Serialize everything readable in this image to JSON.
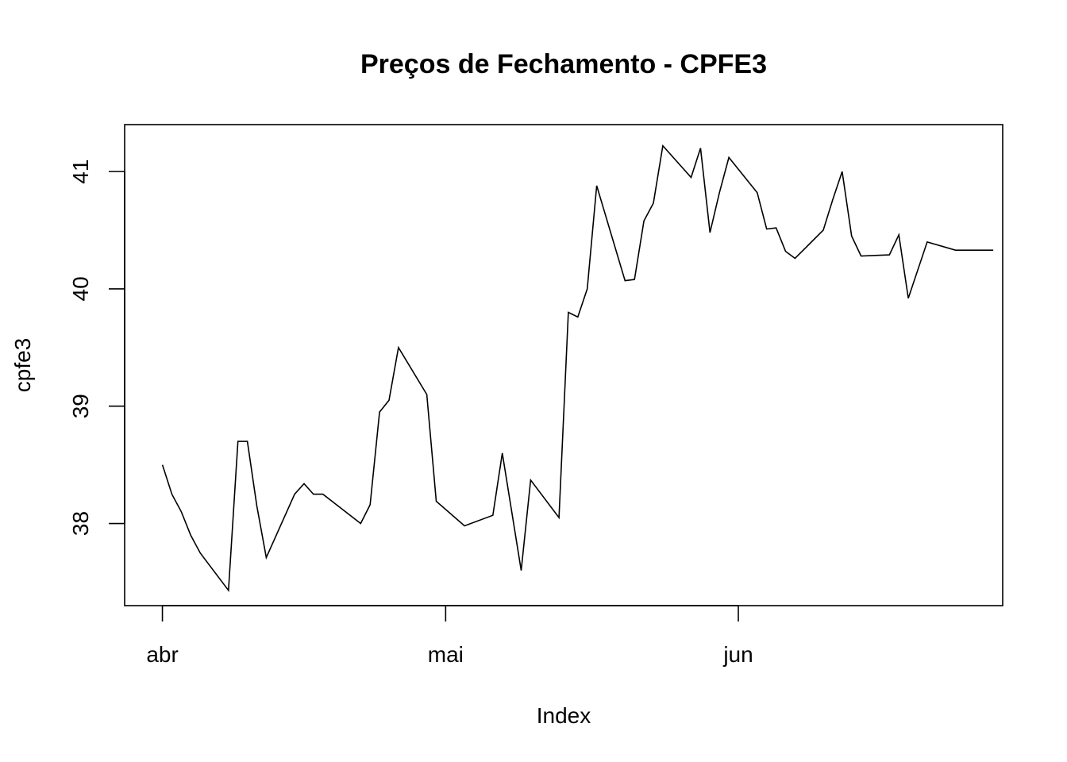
{
  "chart_data": {
    "type": "line",
    "title": "Preços de Fechamento - CPFE3",
    "xlabel": "Index",
    "ylabel": "cpfe3",
    "x_ticks": [
      {
        "label": "abr",
        "date": "2019-04-01"
      },
      {
        "label": "mai",
        "date": "2019-05-01"
      },
      {
        "label": "jun",
        "date": "2019-06-01"
      }
    ],
    "y_ticks": [
      38,
      39,
      40,
      41
    ],
    "ylim": [
      37.3,
      41.4
    ],
    "xlim": [
      "2019-03-28",
      "2019-06-29"
    ],
    "grid": false,
    "series": [
      {
        "color": "#000000",
        "x": [
          "2019-04-01",
          "2019-04-02",
          "2019-04-03",
          "2019-04-04",
          "2019-04-05",
          "2019-04-08",
          "2019-04-09",
          "2019-04-10",
          "2019-04-11",
          "2019-04-12",
          "2019-04-15",
          "2019-04-16",
          "2019-04-17",
          "2019-04-18",
          "2019-04-22",
          "2019-04-23",
          "2019-04-24",
          "2019-04-25",
          "2019-04-26",
          "2019-04-29",
          "2019-04-30",
          "2019-05-02",
          "2019-05-03",
          "2019-05-06",
          "2019-05-07",
          "2019-05-08",
          "2019-05-09",
          "2019-05-10",
          "2019-05-13",
          "2019-05-14",
          "2019-05-15",
          "2019-05-16",
          "2019-05-17",
          "2019-05-20",
          "2019-05-21",
          "2019-05-22",
          "2019-05-23",
          "2019-05-24",
          "2019-05-27",
          "2019-05-28",
          "2019-05-29",
          "2019-05-30",
          "2019-05-31",
          "2019-06-03",
          "2019-06-04",
          "2019-06-05",
          "2019-06-06",
          "2019-06-07",
          "2019-06-10",
          "2019-06-11",
          "2019-06-12",
          "2019-06-13",
          "2019-06-14",
          "2019-06-17",
          "2019-06-18",
          "2019-06-19",
          "2019-06-21",
          "2019-06-24",
          "2019-06-25",
          "2019-06-26",
          "2019-06-27",
          "2019-06-28"
        ],
        "values": [
          38.5,
          38.25,
          38.1,
          37.9,
          37.75,
          37.43,
          38.7,
          38.7,
          38.15,
          37.71,
          38.25,
          38.34,
          38.25,
          38.25,
          38.0,
          38.16,
          38.95,
          39.05,
          39.5,
          39.1,
          38.19,
          38.05,
          37.98,
          38.07,
          38.6,
          38.1,
          37.6,
          38.37,
          38.05,
          39.8,
          39.76,
          40.0,
          40.88,
          40.07,
          40.08,
          40.58,
          40.73,
          41.22,
          40.95,
          41.2,
          40.48,
          40.82,
          41.12,
          40.82,
          40.51,
          40.52,
          40.32,
          40.26,
          40.5,
          40.76,
          41.0,
          40.45,
          40.28,
          40.29,
          40.46,
          39.92,
          40.4,
          40.33,
          40.33,
          40.33,
          40.33,
          40.33
        ]
      }
    ]
  }
}
